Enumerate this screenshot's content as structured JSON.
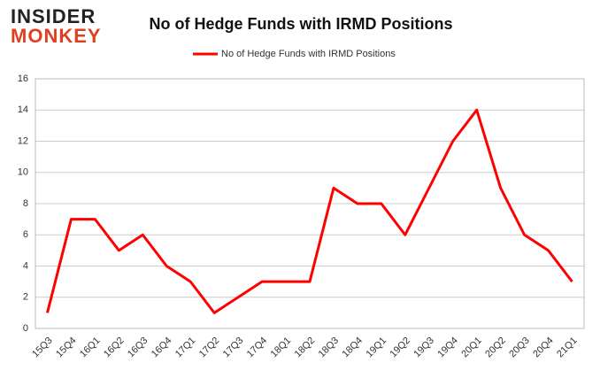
{
  "logo": {
    "line1": "INSIDER",
    "line2": "MONKEY"
  },
  "chart_data": {
    "type": "line",
    "title": "No of Hedge Funds with IRMD Positions",
    "categories": [
      "15Q3",
      "15Q4",
      "16Q1",
      "16Q2",
      "16Q3",
      "16Q4",
      "17Q1",
      "17Q2",
      "17Q3",
      "17Q4",
      "18Q1",
      "18Q2",
      "18Q3",
      "18Q4",
      "19Q1",
      "19Q2",
      "19Q3",
      "19Q4",
      "20Q1",
      "20Q2",
      "20Q3",
      "20Q4",
      "21Q1"
    ],
    "series": [
      {
        "name": "No of Hedge Funds with IRMD Positions",
        "color": "#ff0000",
        "values": [
          1,
          7,
          7,
          5,
          6,
          4,
          3,
          1,
          2,
          3,
          3,
          3,
          9,
          8,
          8,
          6,
          9,
          12,
          14,
          9,
          6,
          5,
          3
        ]
      }
    ],
    "ylim": [
      0,
      16
    ],
    "yticks": [
      0,
      2,
      4,
      6,
      8,
      10,
      12,
      14,
      16
    ],
    "grid": true,
    "legend": "top"
  }
}
